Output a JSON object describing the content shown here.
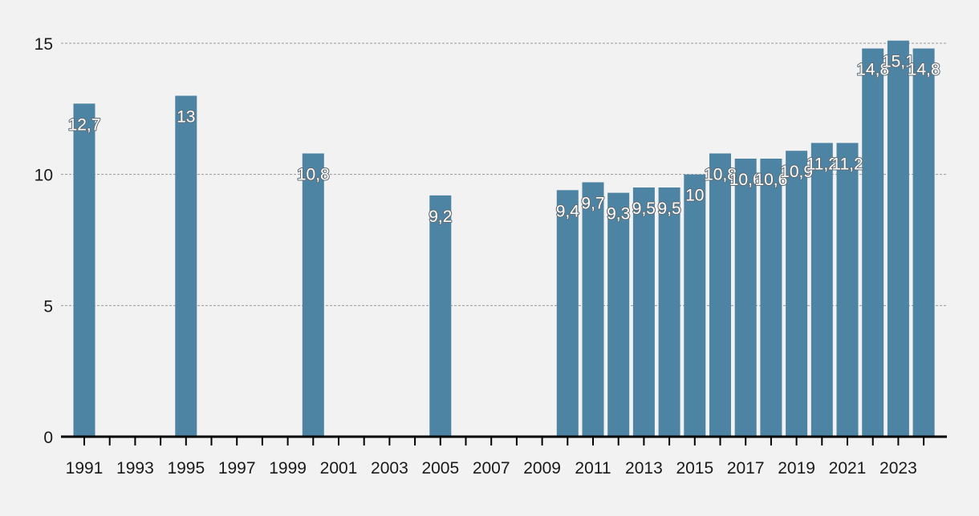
{
  "chart_data": {
    "type": "bar",
    "title": "",
    "xlabel": "",
    "ylabel": "",
    "ylim": [
      0,
      15
    ],
    "yticks": [
      0,
      5,
      10,
      15
    ],
    "grid": true,
    "legend": "none",
    "colors": {
      "bar": "#4e84a3",
      "background": "#f2f2f2"
    },
    "x_range": [
      1991,
      2024
    ],
    "x_tick_labels": [
      "1991",
      "1993",
      "1995",
      "1997",
      "1999",
      "2001",
      "2003",
      "2005",
      "2007",
      "2009",
      "2011",
      "2013",
      "2015",
      "2017",
      "2019",
      "2021",
      "2023"
    ],
    "categories": [
      1991,
      1995,
      2000,
      2005,
      2010,
      2011,
      2012,
      2013,
      2014,
      2015,
      2016,
      2017,
      2018,
      2019,
      2020,
      2021,
      2022,
      2023,
      2024
    ],
    "values": [
      12.7,
      13,
      10.8,
      9.2,
      9.4,
      9.7,
      9.3,
      9.5,
      9.5,
      10,
      10.8,
      10.6,
      10.6,
      10.9,
      11.2,
      11.2,
      14.8,
      15.1,
      14.8
    ],
    "labels": [
      "12,7",
      "13",
      "10,8",
      "9,2",
      "9,4",
      "9,7",
      "9,3",
      "9,5",
      "9,5",
      "10",
      "10,8",
      "10,6",
      "10,6",
      "10,9",
      "11,2",
      "11,2",
      "14,8",
      "15,1",
      "14,8"
    ]
  }
}
